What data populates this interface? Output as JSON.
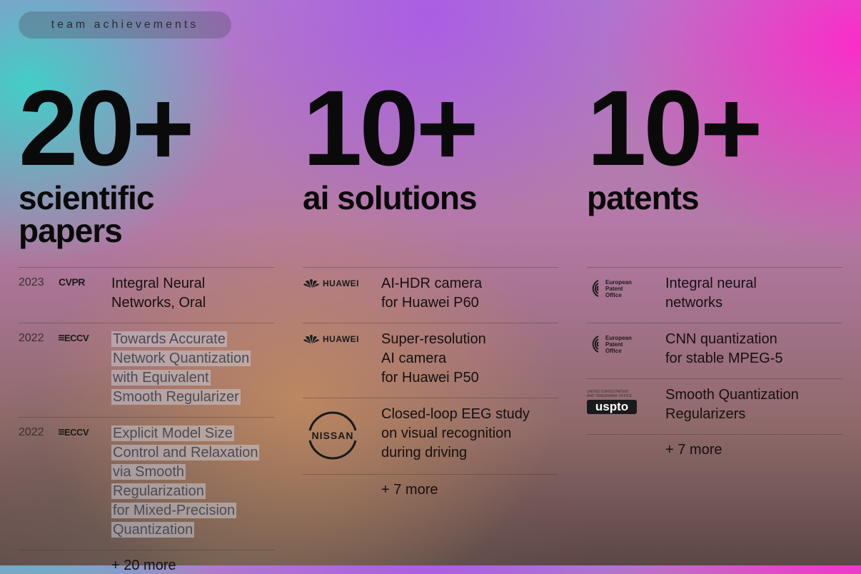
{
  "badge": "team achievements",
  "columns": [
    {
      "number": "20+",
      "label_line1": "scientific",
      "label_line2": "papers",
      "items": [
        {
          "year": "2023",
          "venue": "CVPR",
          "title": "Integral Neural\nNetworks, Oral",
          "highlight": false
        },
        {
          "year": "2022",
          "venue": "ECCV",
          "title": "Towards Accurate\nNetwork Quantization\nwith Equivalent\nSmooth Regularizer",
          "highlight": true
        },
        {
          "year": "2022",
          "venue": "ECCV",
          "title": "Explicit Model Size\nControl and Relaxation\nvia Smooth\nRegularization\nfor Mixed-Precision\nQuantization",
          "highlight": true
        }
      ],
      "more": "+ 20 more"
    },
    {
      "number": "10+",
      "label_line1": "ai solutions",
      "items": [
        {
          "logo": "HUAWEI",
          "title": "AI-HDR camera\nfor Huawei P60"
        },
        {
          "logo": "HUAWEI",
          "title": "Super-resolution\nAI camera\nfor Huawei P50"
        },
        {
          "logo": "NISSAN",
          "title": "Closed-loop EEG study\non visual recognition\nduring driving"
        }
      ],
      "more": "+ 7 more"
    },
    {
      "number": "10+",
      "label_line1": "patents",
      "items": [
        {
          "logo": "European Patent Office",
          "title": "Integral neural\nnetworks"
        },
        {
          "logo": "European Patent Office",
          "title": "CNN quantization\nfor stable MPEG-5"
        },
        {
          "logo": "uspto",
          "logo_small": "UNITED STATES PATENT AND TRADEMARK OFFICE",
          "title": "Smooth Quantization\nRegularizers"
        }
      ],
      "more": "+ 7 more"
    }
  ],
  "icons": {
    "huawei": "huawei-logo-icon",
    "nissan": "nissan-logo-icon",
    "epo": "epo-logo-icon"
  }
}
